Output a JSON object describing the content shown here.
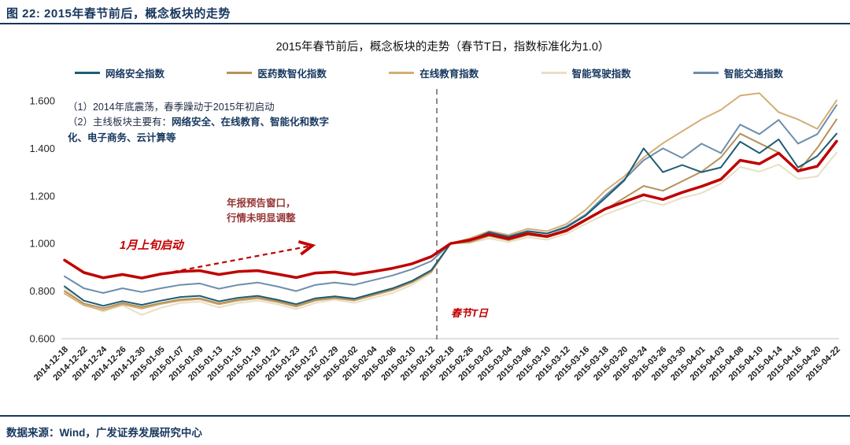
{
  "page": {
    "report_title": "图 22: 2015年春节前后，概念板块的走势",
    "source_note": "数据来源：Wind，广发证券发展研究中心",
    "accent_navy": "#17375E"
  },
  "annotations": {
    "note1": "（1）2014年底震荡，春季躁动于2015年初启动",
    "note2_prefix": "（2）主线板块主要有：",
    "note2_bold": "网络安全、在线教育、智能化和数字化、电子商务、云计算等",
    "window_note_line1": "年报预告窗口，",
    "window_note_line2": "行情未明显调整",
    "jan_note": "1月上旬启动",
    "festival_note": "春节T日",
    "annotation_red": "#C00000",
    "window_note_color": "#943634"
  },
  "chart_data": {
    "type": "line",
    "title": "2015年春节前后，概念板块的走势（春节T日，指数标准化为1.0）",
    "ylim": [
      0.6,
      1.6
    ],
    "y_ticks": [
      0.6,
      0.8,
      1.0,
      1.2,
      1.4,
      1.6
    ],
    "grid": false,
    "legend_position": "top",
    "normalization_line": {
      "label": "春节T日",
      "x_label": "2015-02-18",
      "style": "dashed-gray-vertical"
    },
    "x_labels": [
      "2014-12-18",
      "2014-12-22",
      "2014-12-24",
      "2014-12-26",
      "2014-12-30",
      "2015-01-05",
      "2015-01-07",
      "2015-01-09",
      "2015-01-13",
      "2015-01-15",
      "2015-01-19",
      "2015-01-21",
      "2015-01-23",
      "2015-01-27",
      "2015-01-29",
      "2015-02-02",
      "2015-02-04",
      "2015-02-06",
      "2015-02-10",
      "2015-02-12",
      "2015-02-18",
      "2015-02-26",
      "2015-03-02",
      "2015-03-04",
      "2015-03-06",
      "2015-03-10",
      "2015-03-12",
      "2015-03-16",
      "2015-03-18",
      "2015-03-20",
      "2015-03-24",
      "2015-03-26",
      "2015-03-30",
      "2015-04-01",
      "2015-04-03",
      "2015-04-08",
      "2015-04-10",
      "2015-04-14",
      "2015-04-16",
      "2015-04-20",
      "2015-04-22"
    ],
    "draw_order": [
      3,
      2,
      1,
      4,
      0,
      5
    ],
    "series": [
      {
        "name": "网络安全指数",
        "color": "#1F5C73",
        "width": 2,
        "in_legend": true,
        "values": [
          0.82,
          0.76,
          0.738,
          0.758,
          0.742,
          0.76,
          0.775,
          0.78,
          0.757,
          0.772,
          0.78,
          0.764,
          0.745,
          0.77,
          0.778,
          0.768,
          0.79,
          0.812,
          0.843,
          0.888,
          1.0,
          1.012,
          1.048,
          1.028,
          1.052,
          1.042,
          1.068,
          1.118,
          1.19,
          1.265,
          1.4,
          1.3,
          1.33,
          1.3,
          1.32,
          1.428,
          1.38,
          1.438,
          1.32,
          1.368,
          1.462
        ]
      },
      {
        "name": "医药数智化指数",
        "color": "#B5915A",
        "width": 2,
        "in_legend": true,
        "values": [
          0.8,
          0.748,
          0.728,
          0.75,
          0.733,
          0.75,
          0.765,
          0.77,
          0.748,
          0.764,
          0.773,
          0.758,
          0.738,
          0.763,
          0.772,
          0.762,
          0.784,
          0.806,
          0.838,
          0.882,
          1.0,
          1.006,
          1.032,
          1.014,
          1.036,
          1.026,
          1.05,
          1.096,
          1.142,
          1.192,
          1.242,
          1.222,
          1.262,
          1.302,
          1.362,
          1.462,
          1.422,
          1.382,
          1.302,
          1.402,
          1.522
        ]
      },
      {
        "name": "在线教育指数",
        "color": "#D3AE76",
        "width": 2,
        "in_legend": true,
        "values": [
          0.79,
          0.74,
          0.72,
          0.744,
          0.726,
          0.746,
          0.76,
          0.766,
          0.744,
          0.76,
          0.769,
          0.754,
          0.734,
          0.76,
          0.77,
          0.76,
          0.782,
          0.804,
          0.836,
          0.882,
          1.0,
          1.022,
          1.052,
          1.036,
          1.062,
          1.052,
          1.082,
          1.142,
          1.222,
          1.282,
          1.362,
          1.422,
          1.472,
          1.522,
          1.562,
          1.622,
          1.632,
          1.552,
          1.522,
          1.482,
          1.602
        ]
      },
      {
        "name": "智能驾驶指数",
        "color": "#E9DFC5",
        "width": 2,
        "in_legend": true,
        "values": [
          0.812,
          0.746,
          0.714,
          0.74,
          0.7,
          0.73,
          0.75,
          0.756,
          0.731,
          0.75,
          0.76,
          0.745,
          0.724,
          0.75,
          0.764,
          0.75,
          0.772,
          0.792,
          0.826,
          0.876,
          1.0,
          1.002,
          1.022,
          1.006,
          1.026,
          1.016,
          1.04,
          1.082,
          1.122,
          1.152,
          1.182,
          1.162,
          1.192,
          1.212,
          1.252,
          1.322,
          1.302,
          1.332,
          1.272,
          1.282,
          1.382
        ]
      },
      {
        "name": "智能交通指数",
        "color": "#6D8EAB",
        "width": 2,
        "in_legend": true,
        "values": [
          0.862,
          0.812,
          0.792,
          0.812,
          0.796,
          0.812,
          0.826,
          0.832,
          0.81,
          0.826,
          0.836,
          0.82,
          0.8,
          0.826,
          0.836,
          0.826,
          0.846,
          0.866,
          0.892,
          0.926,
          1.0,
          1.016,
          1.046,
          1.03,
          1.052,
          1.042,
          1.072,
          1.122,
          1.2,
          1.27,
          1.35,
          1.4,
          1.36,
          1.42,
          1.38,
          1.5,
          1.46,
          1.52,
          1.42,
          1.46,
          1.582
        ]
      },
      {
        "name": "（未标注红色加粗线）",
        "color": "#C00000",
        "width": 3.5,
        "in_legend": false,
        "values": [
          0.93,
          0.878,
          0.856,
          0.87,
          0.855,
          0.872,
          0.882,
          0.886,
          0.87,
          0.882,
          0.886,
          0.872,
          0.857,
          0.876,
          0.88,
          0.87,
          0.882,
          0.896,
          0.915,
          0.945,
          1.0,
          1.015,
          1.038,
          1.02,
          1.042,
          1.03,
          1.055,
          1.1,
          1.145,
          1.175,
          1.205,
          1.185,
          1.215,
          1.24,
          1.27,
          1.35,
          1.335,
          1.38,
          1.305,
          1.325,
          1.43
        ]
      }
    ]
  }
}
